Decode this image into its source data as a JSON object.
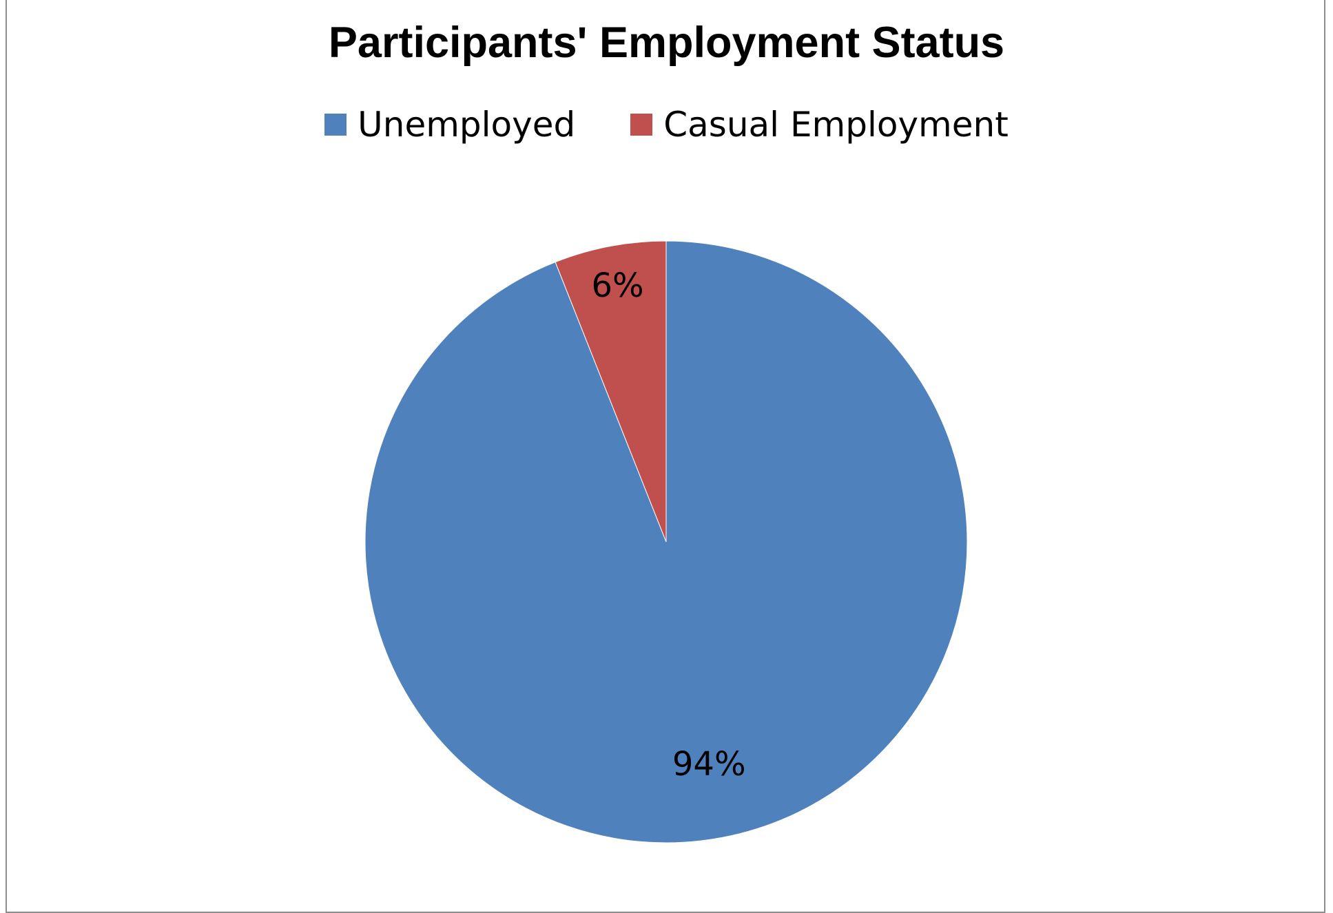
{
  "chart_data": {
    "type": "pie",
    "title": "Participants' Employment Status",
    "legend_position": "top",
    "slices": [
      {
        "label": "Unemployed",
        "value": 94,
        "display": "94%",
        "color": "#4F81BD"
      },
      {
        "label": "Casual Employment",
        "value": 6,
        "display": "6%",
        "color": "#C0504D"
      }
    ]
  }
}
